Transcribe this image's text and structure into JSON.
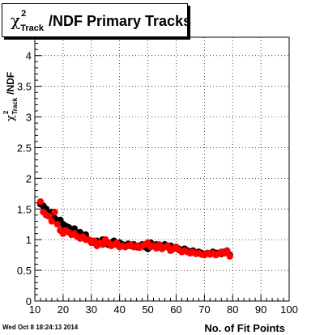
{
  "title": {
    "chi": "χ",
    "sup": "2",
    "sub": "Track",
    "rest": "/NDF Primary Tracks"
  },
  "ylabel": {
    "chi": "χ",
    "sup": "2",
    "sub": "Track",
    "rest": "/NDF"
  },
  "xlabel": "No. of Fit Points",
  "timestamp": "Wed Oct  8 18:24:13 2014",
  "colors": {
    "series_black": "#000000",
    "series_red": "#ff0000",
    "grid": "#000000"
  },
  "chart_data": {
    "type": "scatter",
    "xlim": [
      10,
      100
    ],
    "ylim": [
      0,
      4.3
    ],
    "xticks": [
      10,
      20,
      30,
      40,
      50,
      60,
      70,
      80,
      90,
      100
    ],
    "yticks": [
      0,
      0.5,
      1,
      1.5,
      2,
      2.5,
      3,
      3.5,
      4
    ],
    "ytick_labels": [
      "0",
      "0.5",
      "1",
      "1.5",
      "2",
      "2.5",
      "3",
      "3.5",
      "4"
    ],
    "grid": true,
    "series": [
      {
        "color": "#000000",
        "x": [
          12,
          13,
          14,
          15,
          16,
          17,
          18,
          19,
          20,
          21,
          22,
          23,
          24,
          25,
          26,
          27,
          28,
          29,
          30,
          31,
          32,
          33,
          34,
          35,
          36,
          37,
          38,
          39,
          40,
          41,
          42,
          43,
          44,
          45,
          46,
          47,
          48,
          49,
          50,
          51,
          52,
          53,
          54,
          55,
          56,
          57,
          58,
          59,
          60,
          61,
          62,
          63,
          64,
          65,
          66,
          67,
          68,
          69,
          70,
          71,
          72,
          73,
          74,
          75,
          76,
          77,
          78,
          79
        ],
        "y": [
          1.58,
          1.55,
          1.5,
          1.42,
          1.45,
          1.35,
          1.3,
          1.32,
          1.25,
          1.22,
          1.2,
          1.15,
          1.18,
          1.1,
          1.12,
          1.05,
          1.08,
          1.0,
          0.98,
          0.95,
          0.98,
          0.95,
          1.0,
          0.95,
          0.92,
          0.95,
          0.98,
          0.92,
          0.95,
          0.92,
          0.9,
          0.93,
          0.9,
          0.92,
          0.88,
          0.9,
          0.92,
          0.88,
          0.85,
          0.95,
          0.9,
          0.92,
          0.88,
          0.9,
          0.92,
          0.88,
          0.9,
          0.85,
          0.88,
          0.85,
          0.83,
          0.85,
          0.82,
          0.8,
          0.82,
          0.78,
          0.8,
          0.78,
          0.76,
          0.78,
          0.77,
          0.8,
          0.78,
          0.78,
          0.77,
          0.8,
          0.82,
          0.75
        ]
      },
      {
        "color": "#ff0000",
        "x": [
          12,
          13,
          14,
          15,
          16,
          17,
          18,
          19,
          20,
          21,
          22,
          23,
          24,
          25,
          26,
          27,
          28,
          29,
          30,
          31,
          32,
          33,
          34,
          35,
          36,
          37,
          38,
          39,
          40,
          41,
          42,
          43,
          44,
          45,
          46,
          47,
          48,
          49,
          50,
          51,
          52,
          53,
          54,
          55,
          56,
          57,
          58,
          59,
          60,
          61,
          62,
          63,
          64,
          65,
          66,
          67,
          68,
          69,
          70,
          71,
          72,
          73,
          74,
          75,
          76,
          77,
          78,
          79
        ],
        "y": [
          1.62,
          1.45,
          1.4,
          1.38,
          1.3,
          1.45,
          1.25,
          1.15,
          1.1,
          1.15,
          1.12,
          1.08,
          1.1,
          1.05,
          1.02,
          1.05,
          1.0,
          1.0,
          0.95,
          0.98,
          0.9,
          0.95,
          0.92,
          1.0,
          0.95,
          0.9,
          0.92,
          0.95,
          0.88,
          0.9,
          0.88,
          0.9,
          0.92,
          0.88,
          0.9,
          0.87,
          0.9,
          0.92,
          0.95,
          0.88,
          0.9,
          0.86,
          0.92,
          0.85,
          0.88,
          0.9,
          0.82,
          0.85,
          0.88,
          0.83,
          0.8,
          0.82,
          0.8,
          0.78,
          0.8,
          0.77,
          0.78,
          0.76,
          0.75,
          0.78,
          0.76,
          0.78,
          0.75,
          0.77,
          0.8,
          0.78,
          0.82,
          0.73
        ]
      }
    ]
  }
}
